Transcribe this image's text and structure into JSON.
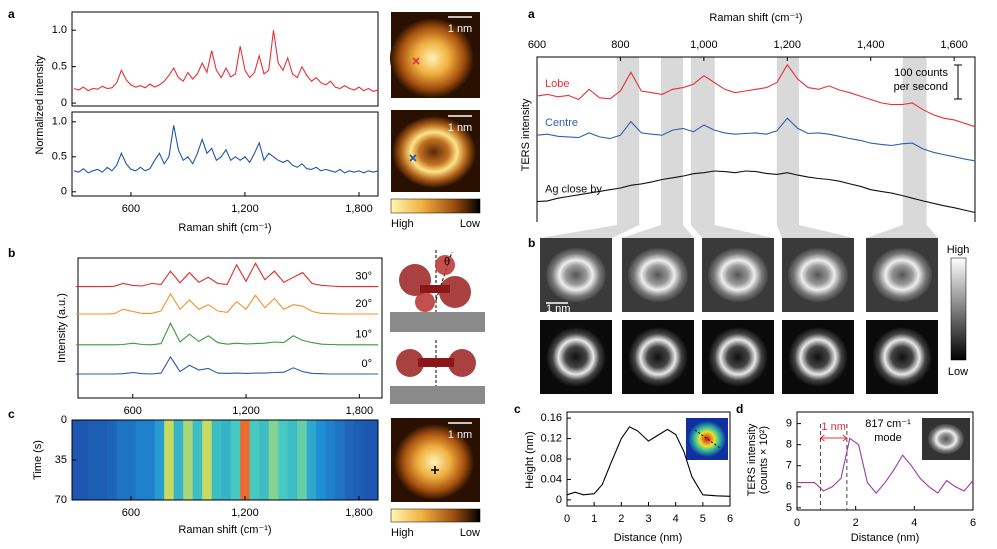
{
  "chart_data": [
    {
      "type": "line",
      "panel": "a",
      "ylabel": "Normalized intensity",
      "xlim": [
        290,
        1900
      ],
      "ylim": [
        -0.04,
        1.25
      ],
      "yticks": [
        0,
        0.5,
        {
          "value": 1,
          "label": "1.0"
        }
      ],
      "x": [
        300,
        325,
        350,
        375,
        400,
        425,
        450,
        475,
        500,
        525,
        550,
        575,
        600,
        625,
        650,
        675,
        700,
        725,
        750,
        775,
        800,
        825,
        850,
        875,
        900,
        925,
        950,
        975,
        1000,
        1025,
        1050,
        1075,
        1100,
        1125,
        1150,
        1175,
        1200,
        1225,
        1250,
        1275,
        1300,
        1325,
        1350,
        1375,
        1400,
        1425,
        1450,
        1475,
        1500,
        1525,
        1550,
        1575,
        1600,
        1625,
        1650,
        1675,
        1700,
        1725,
        1750,
        1775,
        1800,
        1825,
        1850,
        1875,
        1900
      ],
      "series": [
        {
          "color": "#e8313a",
          "values": [
            0.2,
            0.18,
            0.22,
            0.17,
            0.2,
            0.19,
            0.23,
            0.2,
            0.21,
            0.28,
            0.45,
            0.32,
            0.25,
            0.22,
            0.24,
            0.21,
            0.26,
            0.22,
            0.25,
            0.3,
            0.38,
            0.48,
            0.35,
            0.3,
            0.42,
            0.33,
            0.4,
            0.55,
            0.42,
            0.72,
            0.45,
            0.35,
            0.48,
            0.36,
            0.4,
            0.78,
            0.45,
            0.35,
            0.42,
            0.65,
            0.4,
            0.45,
            1.0,
            0.55,
            0.45,
            0.62,
            0.4,
            0.35,
            0.5,
            0.38,
            0.3,
            0.35,
            0.28,
            0.25,
            0.3,
            0.22,
            0.2,
            0.24,
            0.2,
            0.18,
            0.22,
            0.17,
            0.2,
            0.16,
            0.18
          ]
        }
      ]
    },
    {
      "type": "line",
      "xlabel": "Raman shift (cm⁻¹)",
      "xlim": [
        290,
        1900
      ],
      "ylim": [
        -0.06,
        1.14
      ],
      "yticks": [
        0,
        0.5,
        {
          "value": 1,
          "label": "1.0"
        }
      ],
      "xticks": [
        600,
        {
          "value": 1200,
          "label": "1,200"
        },
        {
          "value": 1800,
          "label": "1,800"
        }
      ],
      "x": [
        300,
        325,
        350,
        375,
        400,
        425,
        450,
        475,
        500,
        525,
        550,
        575,
        600,
        625,
        650,
        675,
        700,
        725,
        750,
        775,
        800,
        825,
        850,
        875,
        900,
        925,
        950,
        975,
        1000,
        1025,
        1050,
        1075,
        1100,
        1125,
        1150,
        1175,
        1200,
        1225,
        1250,
        1275,
        1300,
        1325,
        1350,
        1375,
        1400,
        1425,
        1450,
        1475,
        1500,
        1525,
        1550,
        1575,
        1600,
        1625,
        1650,
        1675,
        1700,
        1725,
        1750,
        1775,
        1800,
        1825,
        1850,
        1875,
        1900
      ],
      "series": [
        {
          "color": "#2155a8",
          "values": [
            0.3,
            0.28,
            0.33,
            0.27,
            0.3,
            0.32,
            0.28,
            0.35,
            0.3,
            0.38,
            0.55,
            0.4,
            0.32,
            0.3,
            0.35,
            0.3,
            0.33,
            0.45,
            0.55,
            0.4,
            0.5,
            0.95,
            0.6,
            0.45,
            0.5,
            0.4,
            0.55,
            0.75,
            0.55,
            0.62,
            0.45,
            0.5,
            0.6,
            0.45,
            0.5,
            0.45,
            0.5,
            0.42,
            0.55,
            0.7,
            0.45,
            0.55,
            0.5,
            0.45,
            0.42,
            0.45,
            0.38,
            0.35,
            0.4,
            0.33,
            0.32,
            0.35,
            0.3,
            0.32,
            0.3,
            0.28,
            0.32,
            0.27,
            0.3,
            0.28,
            0.3,
            0.27,
            0.3,
            0.28,
            0.3
          ]
        }
      ]
    },
    {
      "type": "image",
      "scale_label": "1 nm"
    },
    {
      "type": "image",
      "scale_label": "1 nm",
      "colorbar": [
        "High",
        "Low"
      ]
    },
    {
      "type": "line",
      "panel": "b",
      "ylabel": "Intensity (a.u.)",
      "xlim": [
        310,
        1920
      ],
      "ylim": [
        0,
        4.5
      ],
      "xticks": [
        600,
        {
          "value": 1200,
          "label": "1,200"
        },
        {
          "value": 1800,
          "label": "1,800"
        }
      ],
      "x": [
        300,
        350,
        400,
        450,
        500,
        550,
        600,
        650,
        700,
        750,
        800,
        850,
        900,
        950,
        1000,
        1050,
        1100,
        1150,
        1200,
        1250,
        1300,
        1350,
        1400,
        1450,
        1500,
        1550,
        1600,
        1650,
        1700,
        1750,
        1800,
        1850,
        1900
      ],
      "series": [
        {
          "name": "30°",
          "color": "#e02a2a",
          "values": [
            3.58,
            3.58,
            3.58,
            3.58,
            3.59,
            3.68,
            3.62,
            3.6,
            3.68,
            3.65,
            4.08,
            3.7,
            4.03,
            3.72,
            3.88,
            3.68,
            3.65,
            4.28,
            3.75,
            4.33,
            3.8,
            4.08,
            3.72,
            3.88,
            4.03,
            3.68,
            3.62,
            3.6,
            3.58,
            3.58,
            3.58,
            3.58,
            3.58
          ]
        },
        {
          "name": "20°",
          "color": "#f0922a",
          "values": [
            2.7,
            2.7,
            2.7,
            2.7,
            2.71,
            2.85,
            2.78,
            2.72,
            2.72,
            2.8,
            3.35,
            2.85,
            3.15,
            2.85,
            3.0,
            2.8,
            2.75,
            3.1,
            2.85,
            3.3,
            2.9,
            3.2,
            2.85,
            3.0,
            2.95,
            2.78,
            2.72,
            2.71,
            2.7,
            2.7,
            2.7,
            2.7,
            2.7
          ]
        },
        {
          "name": "10°",
          "color": "#3a9a3a",
          "values": [
            1.71,
            1.71,
            1.71,
            1.71,
            1.71,
            1.72,
            1.76,
            1.72,
            1.71,
            1.75,
            2.4,
            1.8,
            2.05,
            1.82,
            2.0,
            1.78,
            1.73,
            1.76,
            1.74,
            1.75,
            1.76,
            1.8,
            1.78,
            2.0,
            1.85,
            1.78,
            1.73,
            1.72,
            1.71,
            1.71,
            1.71,
            1.71,
            1.71
          ]
        },
        {
          "name": "0°",
          "color": "#2a5ab0",
          "values": [
            0.77,
            0.77,
            0.77,
            0.77,
            0.77,
            0.78,
            0.82,
            0.78,
            0.77,
            0.8,
            1.32,
            0.85,
            1.05,
            0.9,
            0.95,
            0.8,
            0.79,
            0.8,
            0.79,
            0.8,
            0.8,
            0.82,
            0.83,
            0.97,
            0.85,
            0.79,
            0.78,
            0.77,
            0.77,
            0.77,
            0.77,
            0.77,
            0.77
          ]
        }
      ]
    },
    {
      "type": "image",
      "annotation": "θ"
    },
    {
      "type": "heatmap",
      "panel": "c",
      "xlabel": "Raman shift (cm⁻¹)",
      "ylabel": "Time (s)",
      "xlim": [
        290,
        1900
      ],
      "ylim": [
        70,
        0
      ],
      "yticks": [
        0,
        35,
        70
      ],
      "xticks": [
        600,
        {
          "value": 1200,
          "label": "1,200"
        },
        {
          "value": 1800,
          "label": "1,800"
        }
      ],
      "x": [
        300,
        350,
        400,
        450,
        500,
        550,
        600,
        650,
        700,
        750,
        800,
        850,
        900,
        950,
        1000,
        1050,
        1100,
        1150,
        1200,
        1250,
        1300,
        1350,
        1400,
        1450,
        1500,
        1550,
        1600,
        1650,
        1700,
        1750,
        1800,
        1850,
        1900
      ],
      "values": [
        0.1,
        0.1,
        0.12,
        0.12,
        0.15,
        0.2,
        0.2,
        0.25,
        0.25,
        0.35,
        0.75,
        0.45,
        0.7,
        0.5,
        0.75,
        0.5,
        0.45,
        0.55,
        0.95,
        0.55,
        0.5,
        0.65,
        0.55,
        0.5,
        0.6,
        0.4,
        0.3,
        0.25,
        0.2,
        0.15,
        0.12,
        0.1,
        0.1
      ]
    },
    {
      "type": "image",
      "scale_label": "1 nm",
      "colorbar": [
        "High",
        "Low"
      ]
    },
    {
      "type": "line",
      "panel": "a",
      "xlabel": "Raman shift (cm⁻¹)",
      "ylabel": "TERS intensity",
      "xlim": [
        600,
        1650
      ],
      "ylim": [
        0,
        485
      ],
      "xticks": [
        600,
        800,
        {
          "value": 1000,
          "label": "1,000"
        },
        {
          "value": 1200,
          "label": "1,200"
        },
        {
          "value": 1400,
          "label": "1,400"
        },
        {
          "value": 1600,
          "label": "1,600"
        }
      ],
      "annotation": [
        "100 counts",
        "per second"
      ],
      "scale_bar": 100,
      "bands": [
        [
          792,
          845
        ],
        [
          897,
          950
        ],
        [
          969,
          1026
        ],
        [
          1175,
          1228
        ],
        [
          1477,
          1534
        ]
      ],
      "x": [
        600,
        625,
        650,
        675,
        700,
        725,
        750,
        775,
        800,
        825,
        850,
        875,
        900,
        925,
        950,
        975,
        1000,
        1025,
        1050,
        1075,
        1100,
        1125,
        1150,
        1175,
        1200,
        1225,
        1250,
        1275,
        1300,
        1325,
        1350,
        1375,
        1400,
        1425,
        1450,
        1475,
        1500,
        1525,
        1550,
        1575,
        1600,
        1625,
        1650
      ],
      "series": [
        {
          "name": "Lobe",
          "color": "#e8313a",
          "values": [
            370,
            375,
            368,
            372,
            360,
            390,
            365,
            362,
            385,
            440,
            385,
            380,
            375,
            390,
            395,
            405,
            430,
            410,
            390,
            380,
            385,
            390,
            395,
            410,
            462,
            420,
            395,
            390,
            400,
            388,
            380,
            370,
            360,
            350,
            345,
            345,
            350,
            330,
            315,
            305,
            300,
            290,
            280
          ]
        },
        {
          "name": "Centre",
          "color": "#2f5fb0",
          "values": [
            255,
            258,
            252,
            250,
            248,
            262,
            250,
            245,
            255,
            295,
            262,
            258,
            255,
            270,
            275,
            265,
            285,
            270,
            262,
            258,
            260,
            262,
            258,
            268,
            305,
            275,
            260,
            262,
            258,
            252,
            245,
            240,
            232,
            228,
            225,
            230,
            232,
            215,
            205,
            198,
            192,
            185,
            180
          ]
        },
        {
          "name": "Ag close by",
          "color": "#111111",
          "values": [
            60,
            62,
            70,
            75,
            80,
            85,
            90,
            95,
            100,
            108,
            112,
            118,
            125,
            130,
            135,
            142,
            145,
            150,
            148,
            145,
            150,
            148,
            143,
            140,
            145,
            138,
            132,
            128,
            125,
            120,
            112,
            105,
            95,
            90,
            85,
            78,
            70,
            62,
            55,
            48,
            42,
            35,
            28
          ]
        }
      ]
    },
    {
      "type": "image",
      "panel": "b",
      "scale_label": "1 nm",
      "colorbar": [
        "High",
        "Low"
      ]
    },
    {
      "type": "line",
      "panel": "c",
      "xlabel": "Distance (nm)",
      "ylabel": "Height (nm)",
      "xlim": [
        0,
        6
      ],
      "ylim": [
        -0.012,
        0.172
      ],
      "xticks": [
        0,
        1,
        2,
        3,
        4,
        5,
        6
      ],
      "yticks": [
        0,
        0.04,
        0.08,
        0.12,
        0.16
      ],
      "x": [
        0,
        0.3,
        0.6,
        1,
        1.3,
        1.6,
        2,
        2.3,
        2.6,
        3,
        3.3,
        3.7,
        4,
        4.3,
        4.6,
        5,
        5.5,
        6
      ],
      "series": [
        {
          "color": "#000000",
          "values": [
            0.01,
            0.015,
            0.01,
            0.012,
            0.03,
            0.07,
            0.12,
            0.143,
            0.135,
            0.115,
            0.125,
            0.138,
            0.128,
            0.095,
            0.045,
            0.01,
            0.008,
            0.007
          ]
        }
      ]
    },
    {
      "type": "line",
      "panel": "d",
      "xlabel": "Distance (nm)",
      "ylabel": [
        "TERS intensity",
        "(counts × 10²)"
      ],
      "xlim": [
        0,
        6
      ],
      "ylim": [
        4.9,
        9.55
      ],
      "xticks": [
        0,
        2,
        4,
        6
      ],
      "yticks": [
        5,
        6,
        7,
        8,
        9
      ],
      "markers": [
        0.8,
        1.7
      ],
      "annotation": {
        "span": "1 nm",
        "mode": [
          "817 cm⁻¹",
          "mode"
        ]
      },
      "x": [
        0,
        0.3,
        0.6,
        0.9,
        1.2,
        1.5,
        1.8,
        2.1,
        2.4,
        2.7,
        3,
        3.3,
        3.6,
        3.9,
        4.2,
        4.5,
        4.8,
        5.1,
        5.4,
        5.7,
        6
      ],
      "series": [
        {
          "color": "#9b3aa0",
          "values": [
            6.2,
            6.2,
            6.2,
            5.8,
            6.0,
            6.4,
            8.3,
            8.0,
            6.2,
            5.7,
            6.2,
            6.8,
            7.5,
            7.0,
            6.4,
            6.0,
            5.7,
            6.3,
            6.0,
            5.8,
            6.3
          ]
        }
      ]
    }
  ]
}
